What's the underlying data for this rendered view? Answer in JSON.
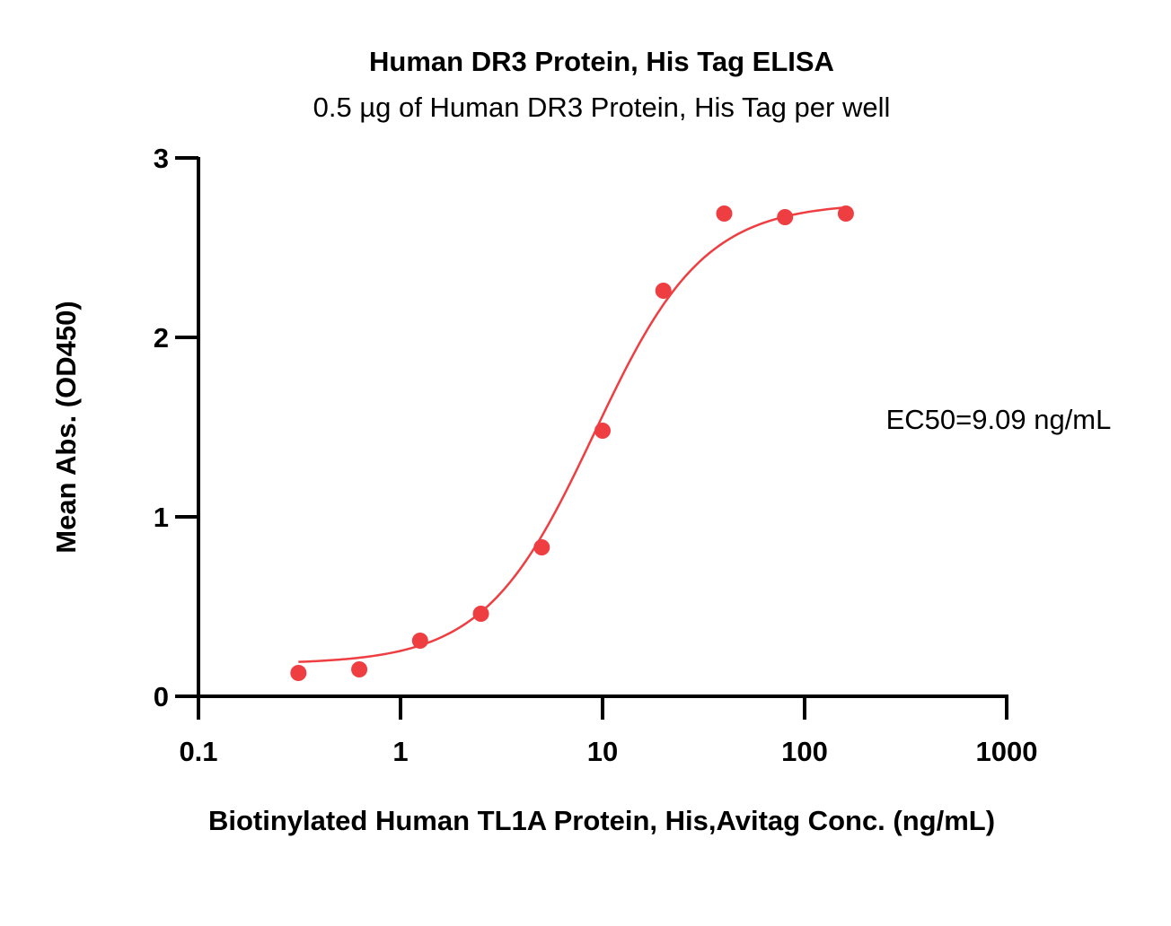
{
  "chart_data": {
    "type": "scatter",
    "title": "Human DR3 Protein, His Tag ELISA",
    "subtitle": "0.5 µg of Human DR3 Protein, His Tag per well",
    "xlabel": "Biotinylated Human TL1A Protein, His,Avitag Conc. (ng/mL)",
    "ylabel": "Mean Abs. (OD450)",
    "x_scale": "log",
    "xlim": [
      0.1,
      1000
    ],
    "ylim": [
      0,
      3
    ],
    "x_ticks": [
      0.1,
      1,
      10,
      100,
      1000
    ],
    "x_tick_labels": [
      "0.1",
      "1",
      "10",
      "100",
      "1000"
    ],
    "y_ticks": [
      0,
      1,
      2,
      3
    ],
    "y_tick_labels": [
      "0",
      "1",
      "2",
      "3"
    ],
    "grid": false,
    "series": [
      {
        "color": "#ef3e42",
        "points": [
          {
            "x": 0.3125,
            "y": 0.13
          },
          {
            "x": 0.625,
            "y": 0.15
          },
          {
            "x": 1.25,
            "y": 0.31
          },
          {
            "x": 2.5,
            "y": 0.46
          },
          {
            "x": 5,
            "y": 0.83
          },
          {
            "x": 10,
            "y": 1.48
          },
          {
            "x": 20,
            "y": 2.26
          },
          {
            "x": 40,
            "y": 2.69
          },
          {
            "x": 80,
            "y": 2.67
          },
          {
            "x": 160,
            "y": 2.69
          }
        ],
        "fit": {
          "model": "4PL",
          "bottom": 0.18,
          "top": 2.75,
          "ec50": 9.09,
          "hill": 1.6,
          "x_range": [
            0.3125,
            160
          ]
        }
      }
    ],
    "annotations": [
      {
        "text": "EC50=9.09 ng/mL"
      }
    ]
  }
}
